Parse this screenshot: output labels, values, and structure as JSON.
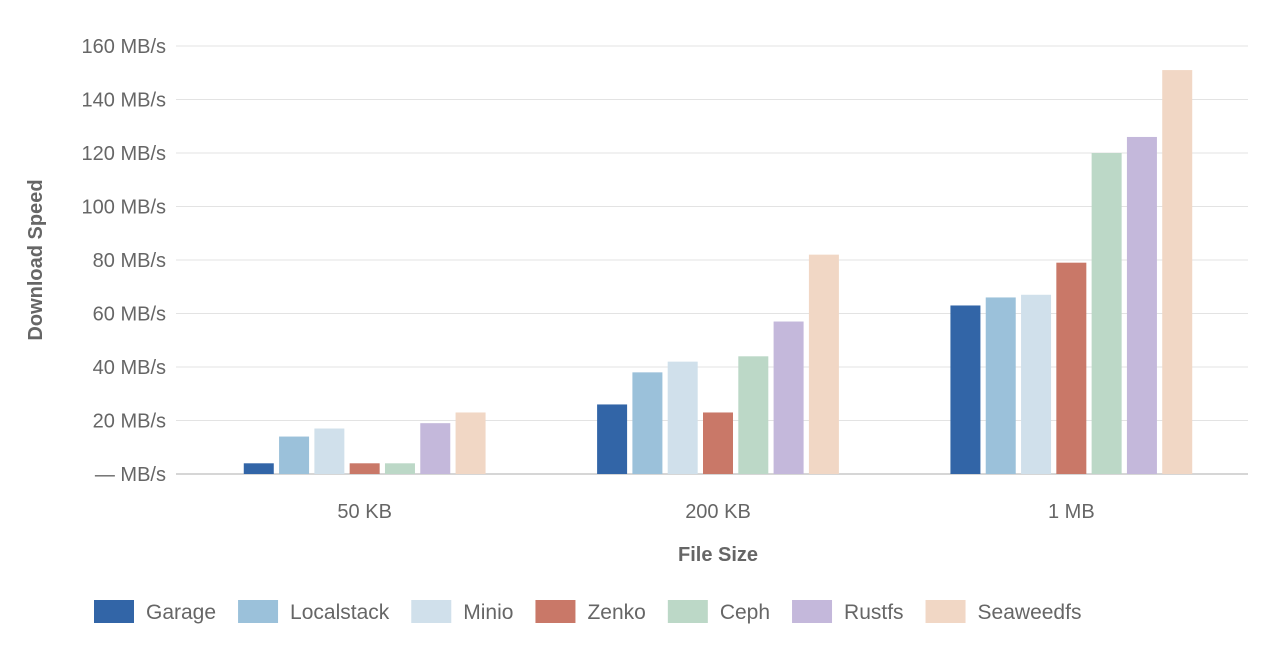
{
  "chart_data": {
    "type": "bar",
    "xlabel": "File Size",
    "ylabel": "Download Speed",
    "categories": [
      "50 KB",
      "200 KB",
      "1 MB"
    ],
    "ylim": [
      0,
      160
    ],
    "yticks": [
      0,
      20,
      40,
      60,
      80,
      100,
      120,
      140,
      160
    ],
    "ytick_labels": [
      "— MB/s",
      "20 MB/s",
      "40 MB/s",
      "60 MB/s",
      "80 MB/s",
      "100 MB/s",
      "120 MB/s",
      "140 MB/s",
      "160 MB/s"
    ],
    "grid": true,
    "legend_position": "bottom",
    "series": [
      {
        "name": "Garage",
        "color": "#3265a7",
        "values": [
          4,
          26,
          63
        ]
      },
      {
        "name": "Localstack",
        "color": "#9bc1da",
        "values": [
          14,
          38,
          66
        ]
      },
      {
        "name": "Minio",
        "color": "#d0e0eb",
        "values": [
          17,
          42,
          67
        ]
      },
      {
        "name": "Zenko",
        "color": "#c97868",
        "values": [
          4,
          23,
          79
        ]
      },
      {
        "name": "Ceph",
        "color": "#bcd8c7",
        "values": [
          4,
          44,
          120
        ]
      },
      {
        "name": "Rustfs",
        "color": "#c4b8db",
        "values": [
          19,
          57,
          126
        ]
      },
      {
        "name": "Seaweedfs",
        "color": "#f1d7c5",
        "values": [
          23,
          82,
          151
        ]
      }
    ]
  }
}
